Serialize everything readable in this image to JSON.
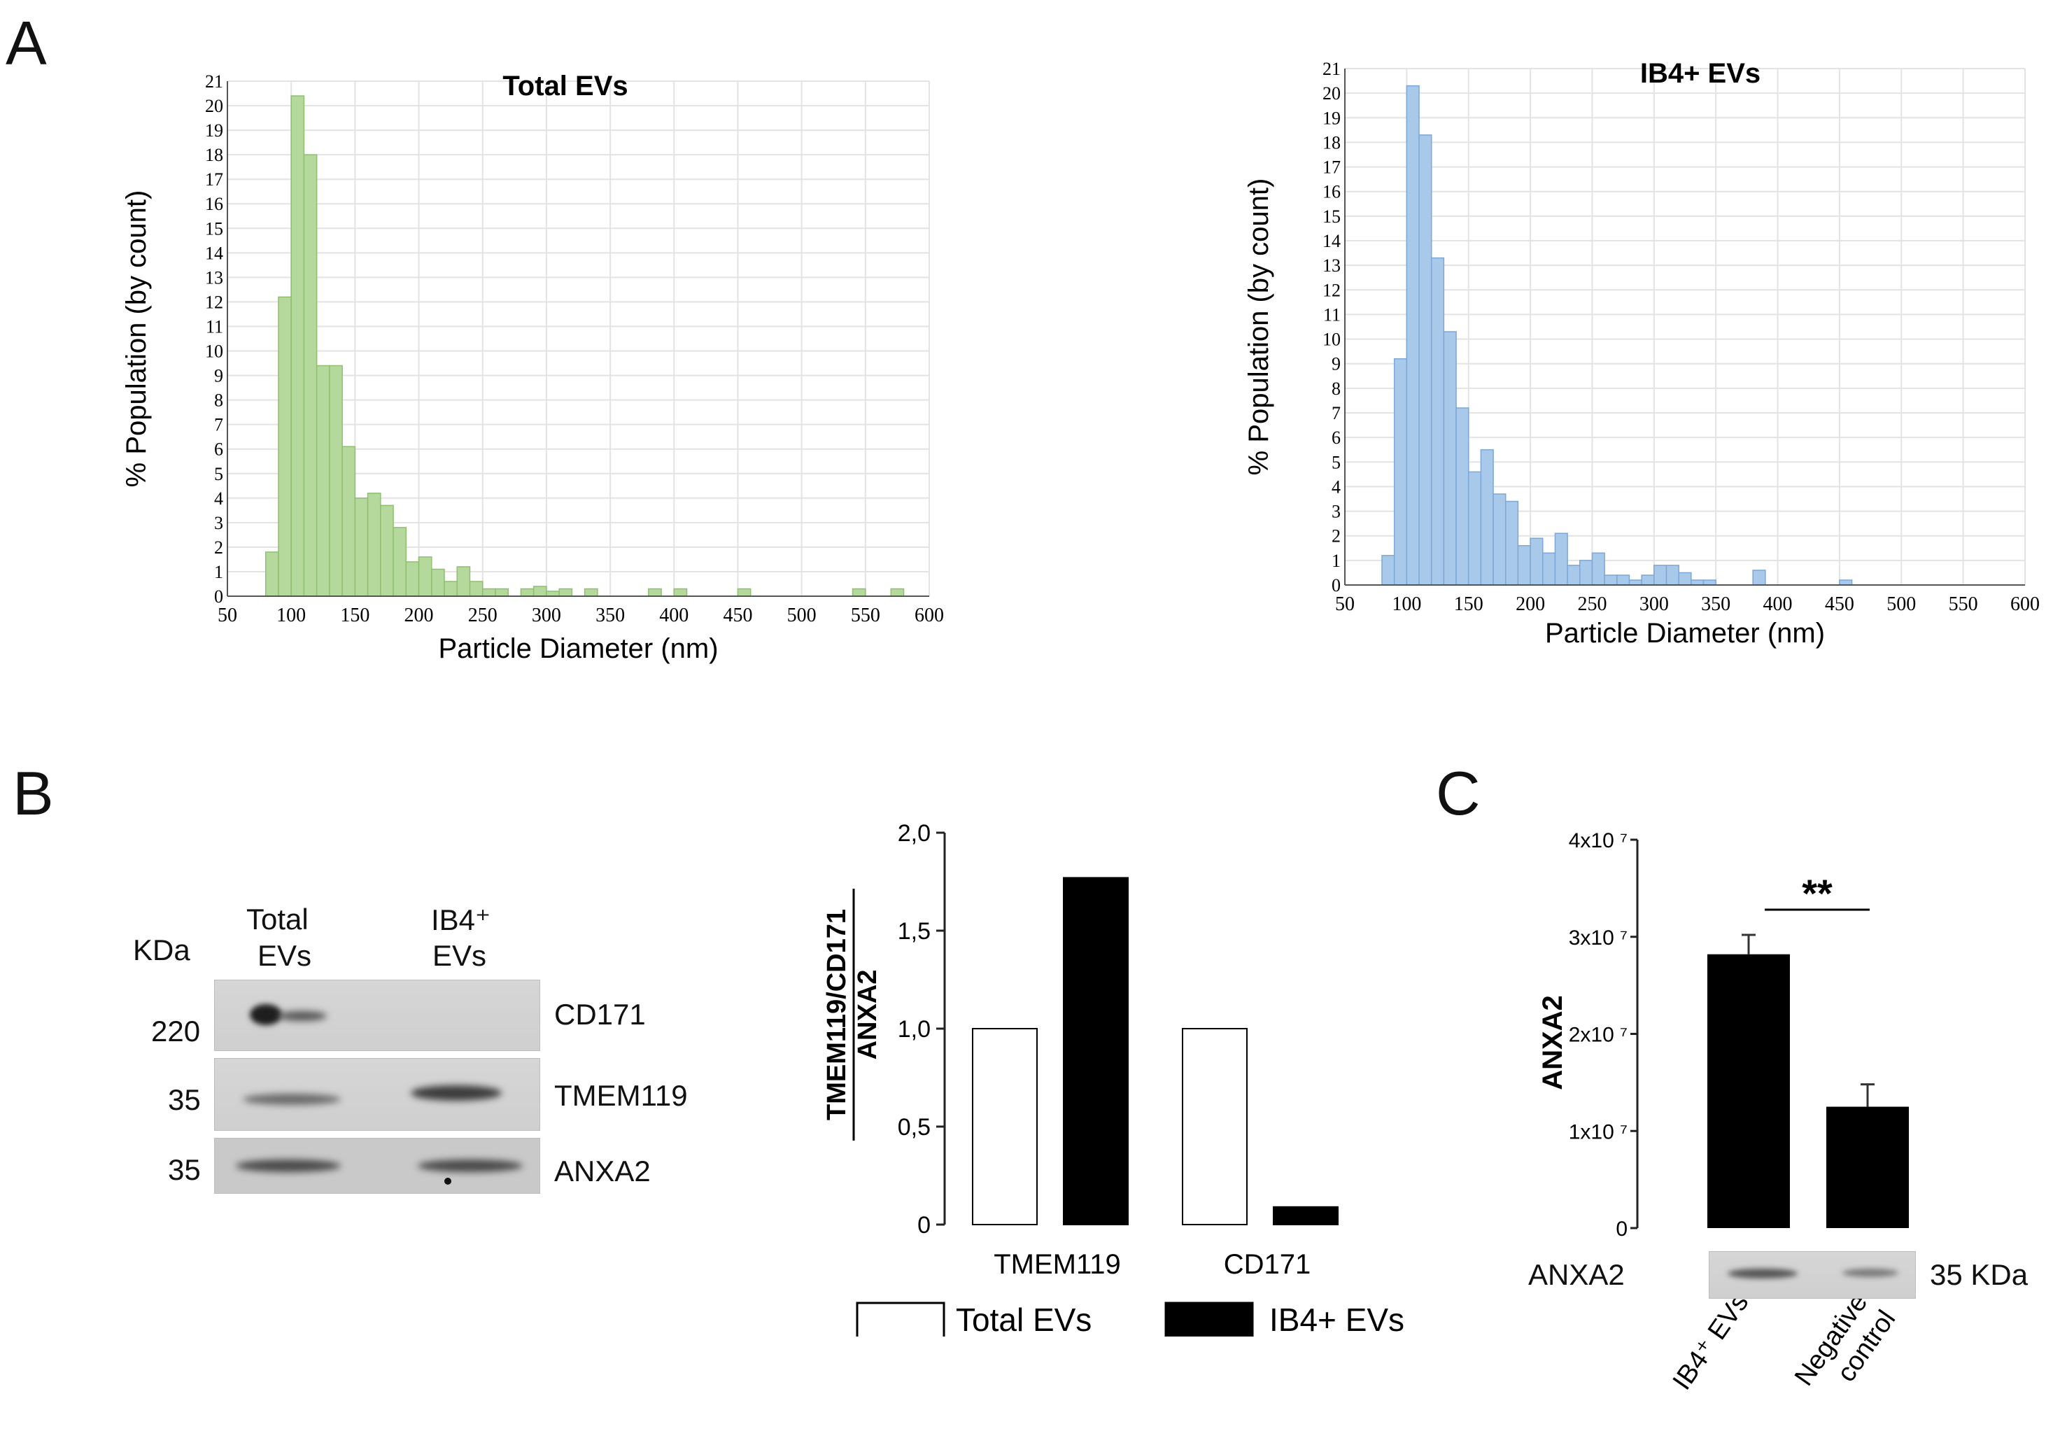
{
  "panels": {
    "a": "A",
    "b": "B",
    "c": "C"
  },
  "chart_data": [
    {
      "type": "bar",
      "title": "Total EVs",
      "xlabel": "Particle Diameter (nm)",
      "ylabel": "% Population (by count)",
      "xlim": [
        50,
        600
      ],
      "ylim": [
        0,
        21
      ],
      "xticks": [
        50,
        100,
        150,
        200,
        250,
        300,
        350,
        400,
        450,
        500,
        550,
        600
      ],
      "yticks": [
        0,
        1,
        2,
        3,
        4,
        5,
        6,
        7,
        8,
        9,
        10,
        11,
        12,
        13,
        14,
        15,
        16,
        17,
        18,
        19,
        20,
        21
      ],
      "bin_width": 10,
      "color": "#b5d99c",
      "edge_color": "#8fbf6f",
      "x": [
        80,
        90,
        100,
        110,
        120,
        130,
        140,
        150,
        160,
        170,
        180,
        190,
        200,
        210,
        220,
        230,
        240,
        250,
        260,
        270,
        280,
        290,
        300,
        310,
        320,
        330,
        340,
        350,
        360,
        370,
        380,
        390,
        400,
        410,
        420,
        430,
        440,
        450,
        460,
        470,
        480,
        490,
        500,
        510,
        520,
        530,
        540,
        550,
        560,
        570,
        580
      ],
      "values": [
        1.8,
        12.2,
        20.4,
        18.0,
        9.4,
        9.4,
        6.1,
        4.0,
        4.2,
        3.7,
        2.8,
        1.4,
        1.6,
        1.1,
        0.6,
        1.2,
        0.6,
        0.3,
        0.3,
        0,
        0.3,
        0.4,
        0.2,
        0.3,
        0,
        0.3,
        0,
        0,
        0,
        0,
        0.3,
        0,
        0.3,
        0,
        0,
        0,
        0,
        0.3,
        0,
        0,
        0,
        0,
        0,
        0,
        0,
        0,
        0.3,
        0,
        0,
        0.3,
        0
      ]
    },
    {
      "type": "bar",
      "title": "IB4+ EVs",
      "xlabel": "Particle Diameter (nm)",
      "ylabel": "% Population (by count)",
      "xlim": [
        50,
        600
      ],
      "ylim": [
        0,
        21
      ],
      "xticks": [
        50,
        100,
        150,
        200,
        250,
        300,
        350,
        400,
        450,
        500,
        550,
        600
      ],
      "yticks": [
        0,
        1,
        2,
        3,
        4,
        5,
        6,
        7,
        8,
        9,
        10,
        11,
        12,
        13,
        14,
        15,
        16,
        17,
        18,
        19,
        20,
        21
      ],
      "bin_width": 10,
      "color": "#a9c9ea",
      "edge_color": "#7da7d4",
      "x": [
        80,
        90,
        100,
        110,
        120,
        130,
        140,
        150,
        160,
        170,
        180,
        190,
        200,
        210,
        220,
        230,
        240,
        250,
        260,
        270,
        280,
        290,
        300,
        310,
        320,
        330,
        340,
        350,
        360,
        370,
        380,
        390,
        400,
        410,
        420,
        430,
        440,
        450,
        460
      ],
      "values": [
        1.2,
        9.2,
        20.3,
        18.3,
        13.3,
        10.3,
        7.2,
        4.6,
        5.5,
        3.7,
        3.4,
        1.6,
        1.9,
        1.3,
        2.1,
        0.8,
        1.0,
        1.3,
        0.4,
        0.4,
        0.2,
        0.4,
        0.8,
        0.8,
        0.5,
        0.2,
        0.2,
        0,
        0,
        0,
        0.6,
        0,
        0,
        0,
        0,
        0,
        0,
        0.2,
        0
      ]
    },
    {
      "type": "bar",
      "title": "",
      "ylabel": "TMEM119/CD171",
      "ylabel_denominator": "ANXA2",
      "categories": [
        "TMEM119",
        "CD171"
      ],
      "series": [
        {
          "name": "Total EVs",
          "values": [
            1.0,
            1.0
          ],
          "color": "#ffffff"
        },
        {
          "name": "IB4+ EVs",
          "values": [
            1.77,
            0.09
          ],
          "color": "#000000"
        }
      ],
      "ylim": [
        0,
        2.0
      ],
      "yticks": [
        "0",
        "0,5",
        "1,0",
        "1,5",
        "2,0"
      ],
      "legend": "bottom"
    },
    {
      "type": "bar",
      "title": "",
      "ylabel": "ANXA2",
      "categories": [
        "IB4⁺ EVs",
        "Negative control"
      ],
      "values": [
        28200000.0,
        12500000.0
      ],
      "errors": [
        2000000.0,
        2300000.0
      ],
      "ylim": [
        0,
        40000000.0
      ],
      "yticks": [
        "0",
        "1x10 ⁷",
        "2x10 ⁷",
        "3x10 ⁷",
        "4x10 ⁷"
      ],
      "significance": "**",
      "color": "#000000"
    }
  ],
  "blots_b": {
    "kda_header": "KDa",
    "lanes": [
      "Total\nEVs",
      "IB4⁺\nEVs"
    ],
    "lane1_line1": "Total",
    "lane1_line2": "EVs",
    "lane2_line1": "IB4⁺",
    "lane2_line2": "EVs",
    "rows": [
      {
        "kda": "220",
        "protein": "CD171"
      },
      {
        "kda": "35",
        "protein": "TMEM119"
      },
      {
        "kda": "35",
        "protein": "ANXA2"
      }
    ]
  },
  "blot_c": {
    "protein": "ANXA2",
    "kda": "35 KDa"
  }
}
